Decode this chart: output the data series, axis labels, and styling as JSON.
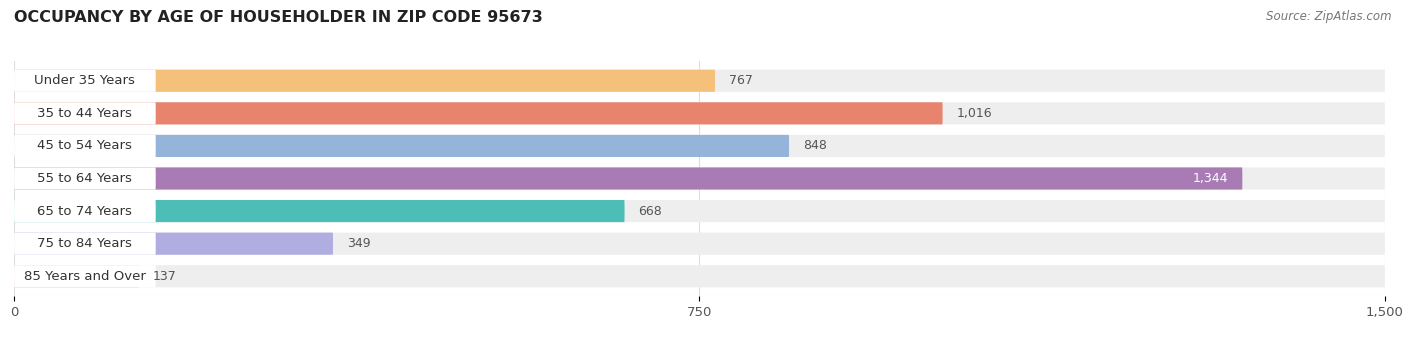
{
  "title": "OCCUPANCY BY AGE OF HOUSEHOLDER IN ZIP CODE 95673",
  "source": "Source: ZipAtlas.com",
  "categories": [
    "Under 35 Years",
    "35 to 44 Years",
    "45 to 54 Years",
    "55 to 64 Years",
    "65 to 74 Years",
    "75 to 84 Years",
    "85 Years and Over"
  ],
  "values": [
    767,
    1016,
    848,
    1344,
    668,
    349,
    137
  ],
  "bar_colors": [
    "#F5C07A",
    "#E8836E",
    "#94B4D9",
    "#A87BB5",
    "#4DBDB8",
    "#B0ADE0",
    "#F5A0B5"
  ],
  "bar_bg_color": "#EEEEEE",
  "xlim": [
    0,
    1500
  ],
  "xticks": [
    0,
    750,
    1500
  ],
  "title_fontsize": 11.5,
  "label_fontsize": 9.5,
  "value_fontsize": 9,
  "source_fontsize": 8.5,
  "bar_height": 0.68,
  "background_color": "#FFFFFF",
  "grid_color": "#DDDDDD",
  "text_color": "#555555",
  "value_threshold_inside": 1200
}
